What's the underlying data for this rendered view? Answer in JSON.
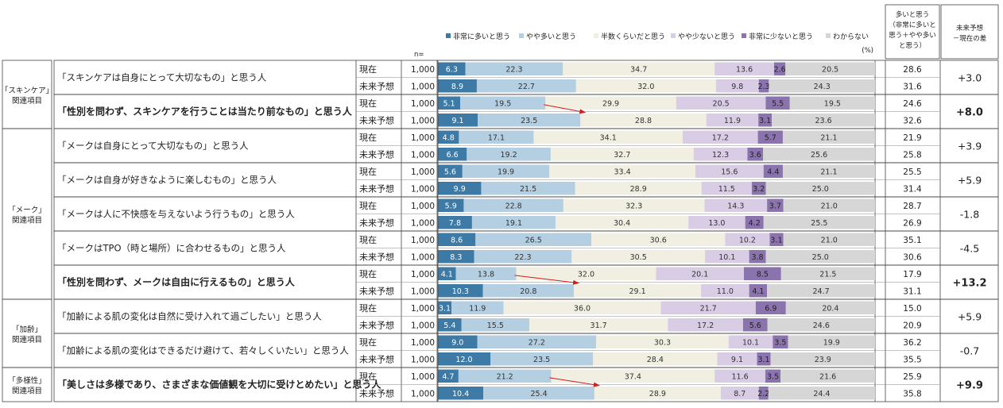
{
  "chart_data": {
    "type": "bar",
    "orientation": "horizontal-stacked-100",
    "unit": "(%)",
    "n_label": "n=",
    "phases": [
      "現在",
      "未来予想"
    ],
    "legend": [
      {
        "name": "非常に多いと思う",
        "color": "#3d7aa6",
        "label_color": "#ffffff"
      },
      {
        "name": "やや多いと思う",
        "color": "#b4cfe2",
        "label_color": "#333333"
      },
      {
        "name": "半数くらいだと思う",
        "color": "#f1efe2",
        "label_color": "#333333"
      },
      {
        "name": "やや少ないと思う",
        "color": "#d9cde6",
        "label_color": "#333333"
      },
      {
        "name": "非常に少ないと思う",
        "color": "#8b73ad",
        "label_color": "#222222"
      },
      {
        "name": "わからない",
        "color": "#d6d6d6",
        "label_color": "#333333"
      }
    ],
    "summary_header": "多いと思う\n（非常に多いと\n思う＋やや多い\nと思う）",
    "diff_header": "未来予想\n－現在の差",
    "groups": [
      {
        "name": "「スキンケア」\n関連項目",
        "items": [
          0,
          1
        ]
      },
      {
        "name": "「メーク」\n関連項目",
        "items": [
          2,
          3,
          4,
          5,
          6
        ]
      },
      {
        "name": "「加齢」\n関連項目",
        "items": [
          7,
          8
        ]
      },
      {
        "name": "「多様性」\n関連項目",
        "items": [
          9
        ]
      }
    ],
    "items": [
      {
        "label": "「スキンケアは自身にとって大切なもの」と思う人",
        "bold": false,
        "arrow": false,
        "rows": [
          {
            "n": "1,000",
            "values": [
              6.3,
              22.3,
              34.7,
              13.6,
              2.6,
              20.5
            ],
            "sum": "28.6"
          },
          {
            "n": "1,000",
            "values": [
              8.9,
              22.7,
              32.0,
              9.8,
              2.3,
              24.3
            ],
            "sum": "31.6"
          }
        ],
        "diff": "+3.0"
      },
      {
        "label": "「性別を問わず、スキンケアを行うことは当たり前なもの」と思う人",
        "bold": true,
        "arrow": true,
        "rows": [
          {
            "n": "1,000",
            "values": [
              5.1,
              19.5,
              29.9,
              20.5,
              5.5,
              19.5
            ],
            "sum": "24.6"
          },
          {
            "n": "1,000",
            "values": [
              9.1,
              23.5,
              28.8,
              11.9,
              3.1,
              23.6
            ],
            "sum": "32.6"
          }
        ],
        "diff": "+8.0"
      },
      {
        "label": "「メークは自身にとって大切なもの」と思う人",
        "bold": false,
        "arrow": false,
        "rows": [
          {
            "n": "1,000",
            "values": [
              4.8,
              17.1,
              34.1,
              17.2,
              5.7,
              21.1
            ],
            "sum": "21.9"
          },
          {
            "n": "1,000",
            "values": [
              6.6,
              19.2,
              32.7,
              12.3,
              3.6,
              25.6
            ],
            "sum": "25.8"
          }
        ],
        "diff": "+3.9"
      },
      {
        "label": "「メークは自身が好きなように楽しむもの」と思う人",
        "bold": false,
        "arrow": false,
        "rows": [
          {
            "n": "1,000",
            "values": [
              5.6,
              19.9,
              33.4,
              15.6,
              4.4,
              21.1
            ],
            "sum": "25.5"
          },
          {
            "n": "1,000",
            "values": [
              9.9,
              21.5,
              28.9,
              11.5,
              3.2,
              25.0
            ],
            "sum": "31.4"
          }
        ],
        "diff": "+5.9"
      },
      {
        "label": "「メークは人に不快感を与えないよう行うもの」と思う人",
        "bold": false,
        "arrow": false,
        "rows": [
          {
            "n": "1,000",
            "values": [
              5.9,
              22.8,
              32.3,
              14.3,
              3.7,
              21.0
            ],
            "sum": "28.7"
          },
          {
            "n": "1,000",
            "values": [
              7.8,
              19.1,
              30.4,
              13.0,
              4.2,
              25.5
            ],
            "sum": "26.9"
          }
        ],
        "diff": "-1.8"
      },
      {
        "label": "「メークはTPO（時と場所）に合わせるもの」と思う人",
        "bold": false,
        "arrow": false,
        "rows": [
          {
            "n": "1,000",
            "values": [
              8.6,
              26.5,
              30.6,
              10.2,
              3.1,
              21.0
            ],
            "sum": "35.1"
          },
          {
            "n": "1,000",
            "values": [
              8.3,
              22.3,
              30.5,
              10.1,
              3.8,
              25.0
            ],
            "sum": "30.6"
          }
        ],
        "diff": "-4.5"
      },
      {
        "label": "「性別を問わず、メークは自由に行えるもの」と思う人",
        "bold": true,
        "arrow": true,
        "rows": [
          {
            "n": "1,000",
            "values": [
              4.1,
              13.8,
              32.0,
              20.1,
              8.5,
              21.5
            ],
            "sum": "17.9"
          },
          {
            "n": "1,000",
            "values": [
              10.3,
              20.8,
              29.1,
              11.0,
              4.1,
              24.7
            ],
            "sum": "31.1"
          }
        ],
        "diff": "+13.2"
      },
      {
        "label": "「加齢による肌の変化は自然に受け入れて過ごしたい」と思う人",
        "bold": false,
        "arrow": false,
        "rows": [
          {
            "n": "1,000",
            "values": [
              3.1,
              11.9,
              36.0,
              21.7,
              6.9,
              20.4
            ],
            "sum": "15.0"
          },
          {
            "n": "1,000",
            "values": [
              5.4,
              15.5,
              31.7,
              17.2,
              5.6,
              24.6
            ],
            "sum": "20.9"
          }
        ],
        "diff": "+5.9"
      },
      {
        "label": "「加齢による肌の変化はできるだけ避けて、若々しくいたい」と思う人",
        "bold": false,
        "arrow": false,
        "rows": [
          {
            "n": "1,000",
            "values": [
              9.0,
              27.2,
              30.3,
              10.1,
              3.5,
              19.9
            ],
            "sum": "36.2"
          },
          {
            "n": "1,000",
            "values": [
              12.0,
              23.5,
              28.4,
              9.1,
              3.1,
              23.9
            ],
            "sum": "35.5"
          }
        ],
        "diff": "-0.7"
      },
      {
        "label": "「美しさは多様であり、さまざまな価値観を大切に受けとめたい」と思う人",
        "bold": true,
        "arrow": true,
        "rows": [
          {
            "n": "1,000",
            "values": [
              4.7,
              21.2,
              37.4,
              11.6,
              3.5,
              21.6
            ],
            "sum": "25.9"
          },
          {
            "n": "1,000",
            "values": [
              10.4,
              25.4,
              28.9,
              8.7,
              2.2,
              24.4
            ],
            "sum": "35.8"
          }
        ],
        "diff": "+9.9"
      }
    ]
  }
}
